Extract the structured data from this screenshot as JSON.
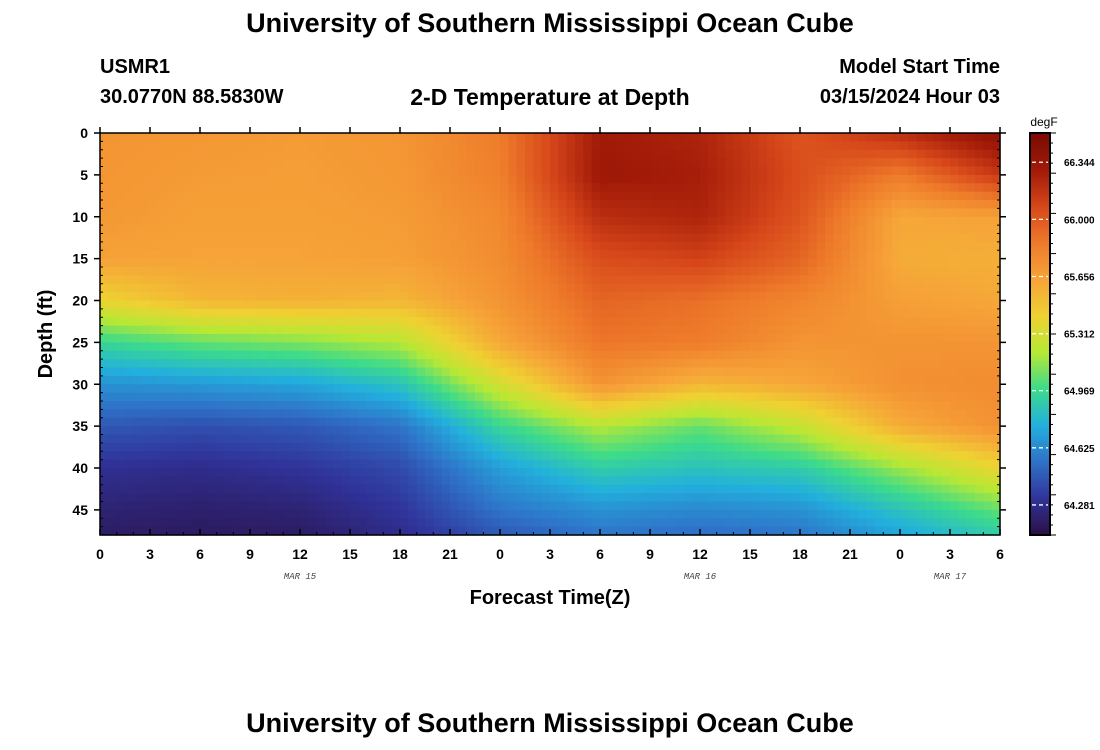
{
  "header": {
    "title": "University of Southern Mississippi Ocean Cube",
    "station_id": "USMR1",
    "coords": "30.0770N  88.5830W",
    "subtitle": "2-D Temperature at Depth",
    "model_label": "Model Start Time",
    "model_time": "03/15/2024 Hour 03"
  },
  "footer": {
    "title": "University of Southern Mississippi Ocean Cube"
  },
  "chart_data": {
    "type": "heatmap",
    "title": "2-D Temperature at Depth",
    "xlabel": "Forecast Time(Z)",
    "ylabel": "Depth (ft)",
    "x_hours": [
      0,
      6,
      12,
      18,
      24,
      30,
      36,
      42,
      48,
      54
    ],
    "x_tick_labels": [
      "0",
      "3",
      "6",
      "9",
      "12",
      "15",
      "18",
      "21",
      "0",
      "3",
      "6",
      "9",
      "12",
      "15",
      "18",
      "21",
      "0",
      "3",
      "6"
    ],
    "date_labels": [
      {
        "label": "MAR 15",
        "hour": 12
      },
      {
        "label": "MAR 16",
        "hour": 36
      },
      {
        "label": "MAR 17",
        "hour": 51
      }
    ],
    "xlim": [
      0,
      54
    ],
    "ylim": [
      0,
      48
    ],
    "y_ticks": [
      0,
      5,
      10,
      15,
      20,
      25,
      30,
      35,
      40,
      45
    ],
    "depth_rows": [
      0,
      5,
      10,
      15,
      20,
      25,
      30,
      35,
      40,
      45,
      48
    ],
    "temperature_degF": [
      [
        65.72,
        65.7,
        65.68,
        65.71,
        65.85,
        66.3,
        66.25,
        66.02,
        66.2,
        66.4
      ],
      [
        65.71,
        65.68,
        65.67,
        65.7,
        65.83,
        66.32,
        66.28,
        66.05,
        65.85,
        66.15
      ],
      [
        65.7,
        65.66,
        65.66,
        65.68,
        65.78,
        66.2,
        66.25,
        66.02,
        65.62,
        65.65
      ],
      [
        65.65,
        65.64,
        65.64,
        65.66,
        65.76,
        66.05,
        66.1,
        65.95,
        65.6,
        65.58
      ],
      [
        65.4,
        65.55,
        65.58,
        65.55,
        65.72,
        65.95,
        65.9,
        65.8,
        65.66,
        65.62
      ],
      [
        64.95,
        65.05,
        65.1,
        65.2,
        65.62,
        65.88,
        65.85,
        65.72,
        65.72,
        65.72
      ],
      [
        64.65,
        64.68,
        64.72,
        64.85,
        65.3,
        65.72,
        65.55,
        65.62,
        65.74,
        65.76
      ],
      [
        64.45,
        64.42,
        64.45,
        64.55,
        64.95,
        65.2,
        65.05,
        65.25,
        65.6,
        65.74
      ],
      [
        64.3,
        64.28,
        64.32,
        64.4,
        64.7,
        64.9,
        64.85,
        64.9,
        65.15,
        65.4
      ],
      [
        64.22,
        64.2,
        64.22,
        64.32,
        64.55,
        64.65,
        64.62,
        64.65,
        64.85,
        65.05
      ],
      [
        64.18,
        64.17,
        64.18,
        64.28,
        64.45,
        64.55,
        64.52,
        64.55,
        64.72,
        64.9
      ]
    ],
    "colorbar": {
      "units": "degF",
      "min": 64.1,
      "max": 66.52,
      "tick_values": [
        64.281,
        64.625,
        64.969,
        65.312,
        65.656,
        66.0,
        66.344
      ],
      "tick_labels": [
        "64.281",
        "64.625",
        "64.969",
        "65.312",
        "65.656",
        "66.000",
        "66.344"
      ]
    },
    "colormap": [
      "#2a1045",
      "#30339a",
      "#2f72c8",
      "#22b0dd",
      "#3ddb8a",
      "#b8e834",
      "#efd132",
      "#f6a338",
      "#ee7a2a",
      "#d6461a",
      "#a11a08",
      "#7a0a03"
    ]
  }
}
